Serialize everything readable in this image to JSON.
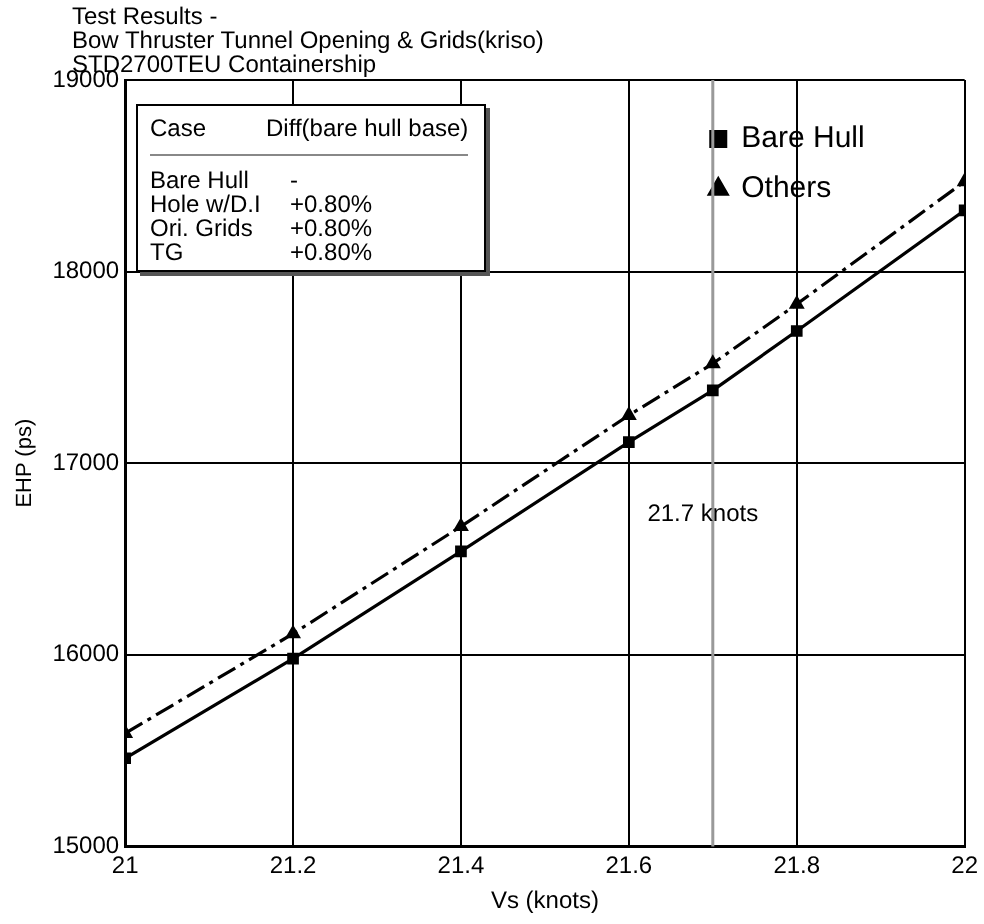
{
  "chart_data": {
    "type": "line",
    "title": "Test Results -\nBow Thruster Tunnel Opening & Grids(kriso)\nSTD2700TEU Containership",
    "xlabel": "Vs (knots)",
    "ylabel": "EHP (ps)",
    "x": [
      21,
      21.2,
      21.4,
      21.6,
      21.7,
      21.8,
      22
    ],
    "series": [
      {
        "name": "Bare Hull",
        "color": "#000000",
        "marker": "square",
        "line_style": "solid",
        "values": [
          15460,
          15980,
          16540,
          17110,
          17380,
          17690,
          18320
        ]
      },
      {
        "name": "Others",
        "color": "#000000",
        "marker": "triangle",
        "line_style": "dashed",
        "values": [
          15590,
          16110,
          16670,
          17250,
          17520,
          17830,
          18470
        ]
      }
    ],
    "xlim": [
      21,
      22
    ],
    "xticks": [
      21,
      21.2,
      21.4,
      21.6,
      21.8,
      22
    ],
    "ylim": [
      15000,
      19000
    ],
    "yticks": [
      15000,
      16000,
      17000,
      18000,
      19000
    ],
    "grid": true,
    "legend": "top right",
    "ref_lines": [
      {
        "axis": "x",
        "value": 21.7,
        "label": "21.7 knots",
        "color": "#999999"
      }
    ],
    "annotations": [
      "Case",
      "Diff(bare hull base)",
      "Bare Hull",
      "-",
      "Hole w/D.I",
      "+0.80%",
      "Ori. Grids",
      "+0.80%",
      "TG",
      "+0.80%"
    ]
  }
}
